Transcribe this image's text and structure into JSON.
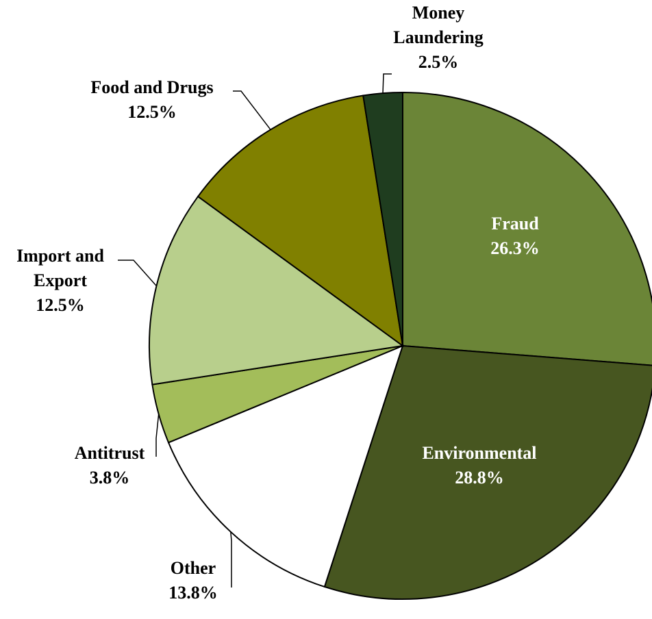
{
  "chart_data": {
    "type": "pie",
    "categories": [
      "Fraud",
      "Environmental",
      "Other",
      "Antitrust",
      "Import and Export",
      "Food and Drugs",
      "Money Laundering"
    ],
    "values": [
      26.3,
      28.8,
      13.8,
      3.8,
      12.5,
      12.5,
      2.5
    ],
    "value_labels": [
      "26.3%",
      "28.8%",
      "13.8%",
      "3.8%",
      "12.5%",
      "12.5%",
      "2.5%"
    ],
    "colors": [
      "#6b8537",
      "#475620",
      "#ffffff",
      "#a3bd5a",
      "#b8cf8c",
      "#808000",
      "#1f3d1f"
    ]
  }
}
